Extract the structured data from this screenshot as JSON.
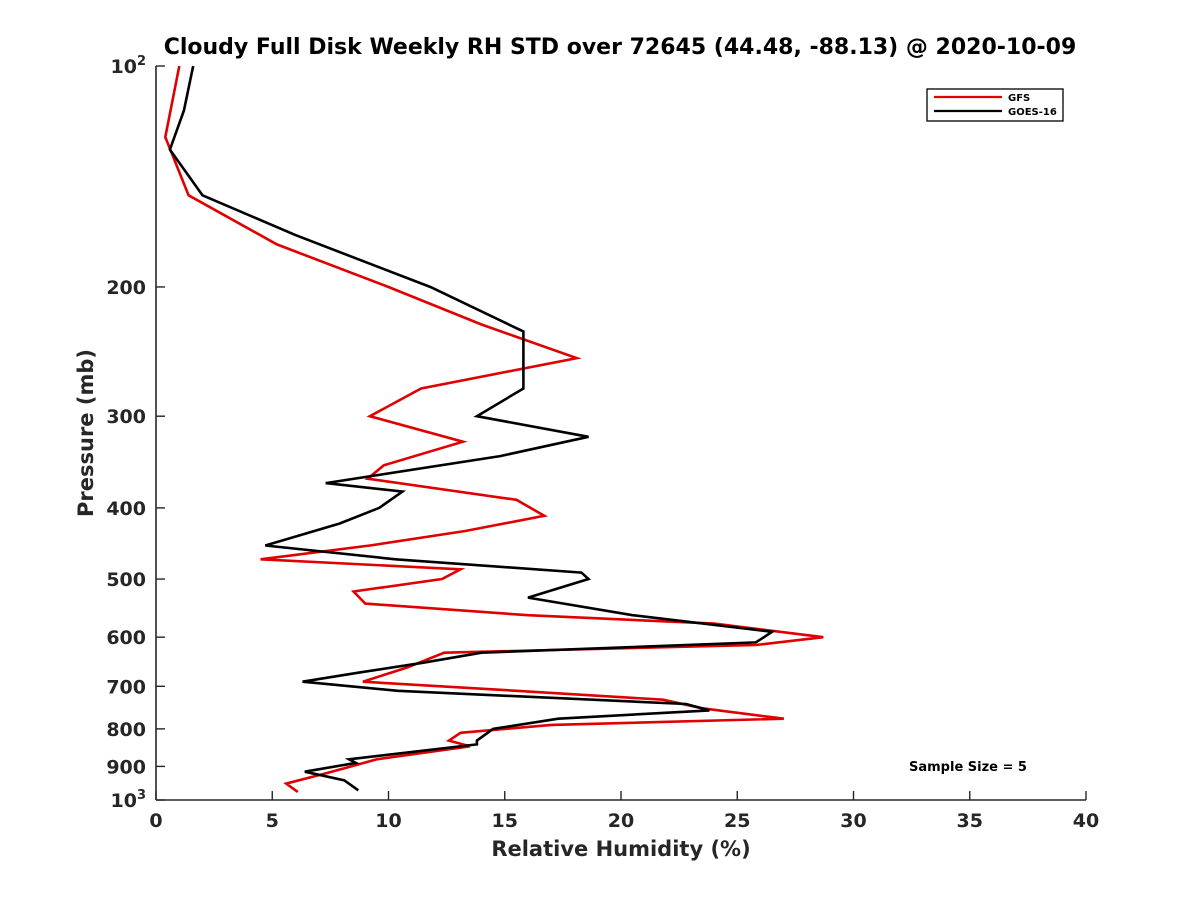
{
  "chart_data": {
    "type": "line",
    "title": "Cloudy Full Disk Weekly RH STD over 72645 (44.48, -88.13) @ 2020-10-09",
    "xlabel": "Relative Humidity (%)",
    "ylabel": "Pressure (mb)",
    "xlim": [
      0,
      40
    ],
    "ylim": [
      100,
      1000
    ],
    "y_scale": "log",
    "y_reversed": true,
    "x_ticks": [
      0,
      5,
      10,
      15,
      20,
      25,
      30,
      35,
      40
    ],
    "x_tick_labels": [
      "0",
      "5",
      "10",
      "15",
      "20",
      "25",
      "30",
      "35",
      "40"
    ],
    "y_ticks": [
      {
        "value": 100,
        "base": "10",
        "exp": "2"
      },
      {
        "value": 200,
        "label": "200"
      },
      {
        "value": 300,
        "label": "300"
      },
      {
        "value": 400,
        "label": "400"
      },
      {
        "value": 500,
        "label": "500"
      },
      {
        "value": 600,
        "label": "600"
      },
      {
        "value": 700,
        "label": "700"
      },
      {
        "value": 800,
        "label": "800"
      },
      {
        "value": 900,
        "label": "900"
      },
      {
        "value": 1000,
        "base": "10",
        "exp": "3"
      }
    ],
    "legend_position": "top-right",
    "annotation": "Sample Size = 5",
    "series": [
      {
        "name": "GFS",
        "color": "#e00000",
        "points": [
          [
            1.0,
            100
          ],
          [
            0.4,
            125
          ],
          [
            1.4,
            150
          ],
          [
            5.2,
            175
          ],
          [
            10.0,
            200
          ],
          [
            14.0,
            225
          ],
          [
            18.1,
            250
          ],
          [
            11.4,
            275
          ],
          [
            9.2,
            300
          ],
          [
            13.2,
            325
          ],
          [
            9.8,
            350
          ],
          [
            9.1,
            365
          ],
          [
            15.5,
            390
          ],
          [
            16.7,
            410
          ],
          [
            13.3,
            430
          ],
          [
            9.2,
            450
          ],
          [
            4.5,
            470
          ],
          [
            13.1,
            485
          ],
          [
            12.3,
            500
          ],
          [
            8.5,
            520
          ],
          [
            9.0,
            540
          ],
          [
            16.0,
            560
          ],
          [
            24.0,
            575
          ],
          [
            28.7,
            600
          ],
          [
            25.8,
            615
          ],
          [
            12.4,
            630
          ],
          [
            10.8,
            660
          ],
          [
            8.9,
            690
          ],
          [
            15.5,
            710
          ],
          [
            21.8,
            730
          ],
          [
            23.5,
            750
          ],
          [
            27.0,
            775
          ],
          [
            17.0,
            790
          ],
          [
            13.1,
            810
          ],
          [
            12.6,
            830
          ],
          [
            13.5,
            845
          ],
          [
            9.5,
            880
          ],
          [
            7.3,
            920
          ],
          [
            5.6,
            950
          ],
          [
            6.1,
            975
          ]
        ]
      },
      {
        "name": "GOES-16",
        "color": "#000000",
        "points": [
          [
            1.6,
            100
          ],
          [
            1.2,
            115
          ],
          [
            0.6,
            130
          ],
          [
            2.0,
            150
          ],
          [
            6.0,
            170
          ],
          [
            11.8,
            200
          ],
          [
            15.8,
            230
          ],
          [
            15.8,
            250
          ],
          [
            15.8,
            275
          ],
          [
            13.8,
            300
          ],
          [
            18.6,
            320
          ],
          [
            14.8,
            340
          ],
          [
            7.3,
            370
          ],
          [
            10.6,
            380
          ],
          [
            9.6,
            400
          ],
          [
            7.9,
            420
          ],
          [
            4.7,
            450
          ],
          [
            10.3,
            470
          ],
          [
            18.3,
            490
          ],
          [
            18.6,
            500
          ],
          [
            16.0,
            530
          ],
          [
            20.5,
            560
          ],
          [
            26.5,
            590
          ],
          [
            25.8,
            610
          ],
          [
            14.0,
            630
          ],
          [
            11.5,
            650
          ],
          [
            8.8,
            670
          ],
          [
            6.3,
            690
          ],
          [
            10.4,
            710
          ],
          [
            22.8,
            740
          ],
          [
            23.8,
            755
          ],
          [
            17.3,
            775
          ],
          [
            14.5,
            800
          ],
          [
            13.8,
            830
          ],
          [
            13.8,
            840
          ],
          [
            8.3,
            880
          ],
          [
            8.6,
            890
          ],
          [
            6.4,
            915
          ],
          [
            8.1,
            940
          ],
          [
            8.7,
            970
          ]
        ]
      }
    ]
  }
}
